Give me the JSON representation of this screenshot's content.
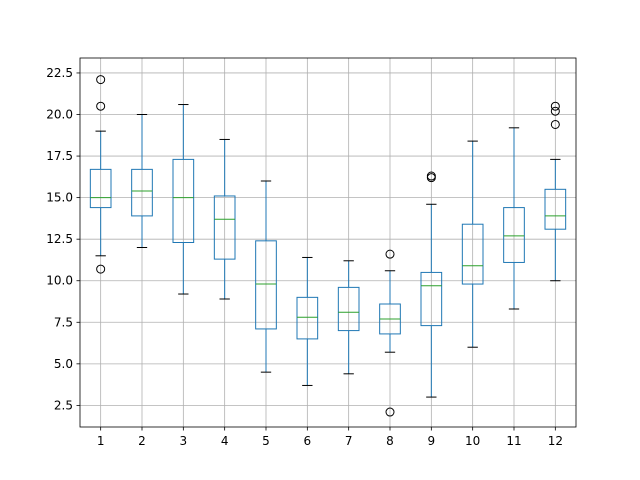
{
  "chart_data": {
    "type": "box",
    "title": "",
    "xlabel": "",
    "ylabel": "",
    "ylim": [
      1.2,
      23.4
    ],
    "grid": true,
    "categories": [
      "1",
      "2",
      "3",
      "4",
      "5",
      "6",
      "7",
      "8",
      "9",
      "10",
      "11",
      "12"
    ],
    "y_ticks": [
      "2.5",
      "5.0",
      "7.5",
      "10.0",
      "12.5",
      "15.0",
      "17.5",
      "20.0",
      "22.5"
    ],
    "boxes": [
      {
        "whisker_low": 11.5,
        "q1": 14.4,
        "median": 15.0,
        "q3": 16.7,
        "whisker_high": 19.0,
        "outliers": [
          10.7,
          20.5,
          22.1
        ]
      },
      {
        "whisker_low": 12.0,
        "q1": 13.9,
        "median": 15.4,
        "q3": 16.7,
        "whisker_high": 20.0,
        "outliers": []
      },
      {
        "whisker_low": 9.2,
        "q1": 12.3,
        "median": 15.0,
        "q3": 17.3,
        "whisker_high": 20.6,
        "outliers": []
      },
      {
        "whisker_low": 8.9,
        "q1": 11.3,
        "median": 13.7,
        "q3": 15.1,
        "whisker_high": 18.5,
        "outliers": []
      },
      {
        "whisker_low": 4.5,
        "q1": 7.1,
        "median": 9.8,
        "q3": 12.4,
        "whisker_high": 16.0,
        "outliers": []
      },
      {
        "whisker_low": 3.7,
        "q1": 6.5,
        "median": 7.8,
        "q3": 9.0,
        "whisker_high": 11.4,
        "outliers": []
      },
      {
        "whisker_low": 4.4,
        "q1": 7.0,
        "median": 8.1,
        "q3": 9.6,
        "whisker_high": 11.2,
        "outliers": []
      },
      {
        "whisker_low": 5.7,
        "q1": 6.8,
        "median": 7.7,
        "q3": 8.6,
        "whisker_high": 10.6,
        "outliers": [
          2.1,
          11.6
        ]
      },
      {
        "whisker_low": 3.0,
        "q1": 7.3,
        "median": 9.7,
        "q3": 10.5,
        "whisker_high": 14.6,
        "outliers": [
          16.2,
          16.3
        ]
      },
      {
        "whisker_low": 6.0,
        "q1": 9.8,
        "median": 10.9,
        "q3": 13.4,
        "whisker_high": 18.4,
        "outliers": []
      },
      {
        "whisker_low": 8.3,
        "q1": 11.1,
        "median": 12.7,
        "q3": 14.4,
        "whisker_high": 19.2,
        "outliers": []
      },
      {
        "whisker_low": 10.0,
        "q1": 13.1,
        "median": 13.9,
        "q3": 15.5,
        "whisker_high": 17.3,
        "outliers": [
          19.4,
          20.2,
          20.5
        ]
      }
    ],
    "colors": {
      "box": "#1f77b4",
      "median": "#2ca02c",
      "whisker": "#000000",
      "grid": "#b0b0b0",
      "axes": "#000000"
    }
  }
}
